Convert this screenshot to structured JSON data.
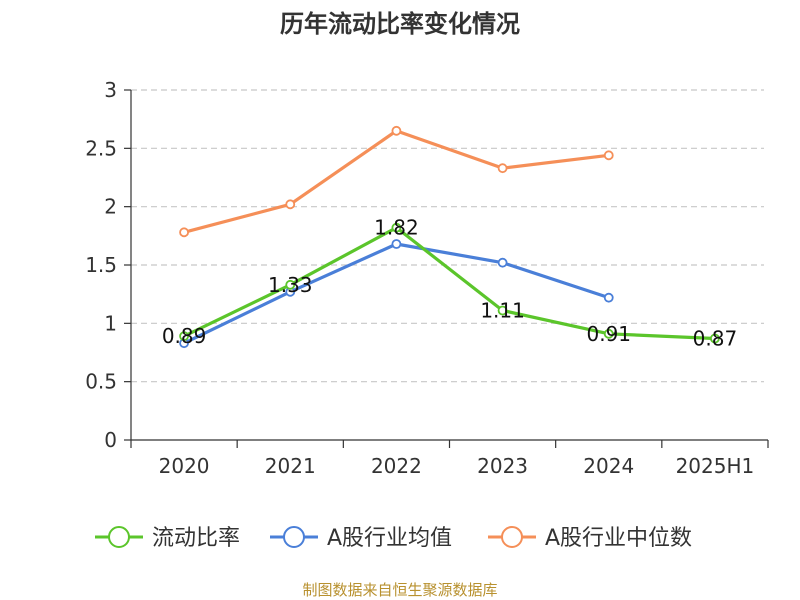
{
  "chart_data": {
    "type": "line",
    "title": "历年流动比率变化情况",
    "categories": [
      "2020",
      "2021",
      "2022",
      "2023",
      "2024",
      "2025H1"
    ],
    "ylim": [
      0,
      3
    ],
    "yticks": [
      "0",
      "0.5",
      "1",
      "1.5",
      "2",
      "2.5",
      "3"
    ],
    "grid": true,
    "legend_position": "bottom",
    "series": [
      {
        "name": "流动比率",
        "color": "#5bc52b",
        "values": [
          0.89,
          1.33,
          1.82,
          1.11,
          0.91,
          0.87
        ],
        "labels": [
          "0.89",
          "1.33",
          "1.82",
          "1.11",
          "0.91",
          "0.87"
        ]
      },
      {
        "name": "A股行业均值",
        "color": "#4a7fd8",
        "values": [
          0.83,
          1.27,
          1.68,
          1.52,
          1.22,
          null
        ]
      },
      {
        "name": "A股行业中位数",
        "color": "#f58f58",
        "values": [
          1.78,
          2.02,
          2.65,
          2.33,
          2.44,
          null
        ]
      }
    ],
    "source": "制图数据来自恒生聚源数据库"
  }
}
